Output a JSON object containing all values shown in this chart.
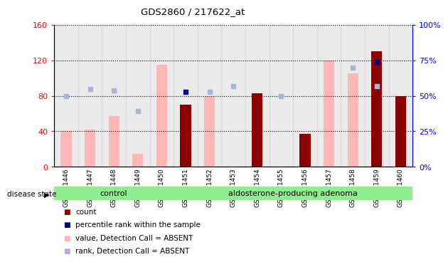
{
  "title": "GDS2860 / 217622_at",
  "samples": [
    "GSM211446",
    "GSM211447",
    "GSM211448",
    "GSM211449",
    "GSM211450",
    "GSM211451",
    "GSM211452",
    "GSM211453",
    "GSM211454",
    "GSM211455",
    "GSM211456",
    "GSM211457",
    "GSM211458",
    "GSM211459",
    "GSM211460"
  ],
  "value_absent": [
    40,
    42,
    57,
    15,
    115,
    null,
    80,
    null,
    null,
    null,
    null,
    120,
    105,
    null,
    null
  ],
  "rank_absent_pct": [
    50,
    55,
    54,
    39,
    null,
    null,
    53,
    57,
    null,
    50,
    null,
    null,
    70,
    57,
    null
  ],
  "count": [
    null,
    null,
    null,
    null,
    null,
    70,
    null,
    null,
    83,
    null,
    37,
    null,
    null,
    130,
    80
  ],
  "percentile_rank_pct": [
    null,
    null,
    null,
    null,
    null,
    53,
    null,
    null,
    null,
    null,
    null,
    null,
    null,
    74,
    null
  ],
  "left_ylim": [
    0,
    160
  ],
  "right_ylim": [
    0,
    100
  ],
  "left_yticks": [
    0,
    40,
    80,
    120,
    160
  ],
  "right_yticks": [
    0,
    25,
    50,
    75,
    100
  ],
  "bar_color_absent": "#ffb6b6",
  "bar_color_count": "#8b0000",
  "dot_color_rank_absent": "#aab4d8",
  "dot_color_percentile": "#00008b",
  "group1_label": "control",
  "group2_label": "aldosterone-producing adenoma",
  "group1_indices": [
    0,
    1,
    2,
    3,
    4
  ],
  "group2_indices": [
    5,
    6,
    7,
    8,
    9,
    10,
    11,
    12,
    13,
    14
  ],
  "group_bg_color": "#90ee90",
  "disease_state_label": "disease state",
  "legend_items": [
    {
      "label": "count",
      "color": "#8b0000"
    },
    {
      "label": "percentile rank within the sample",
      "color": "#00008b"
    },
    {
      "label": "value, Detection Call = ABSENT",
      "color": "#ffb6b6"
    },
    {
      "label": "rank, Detection Call = ABSENT",
      "color": "#aab4d8"
    }
  ]
}
